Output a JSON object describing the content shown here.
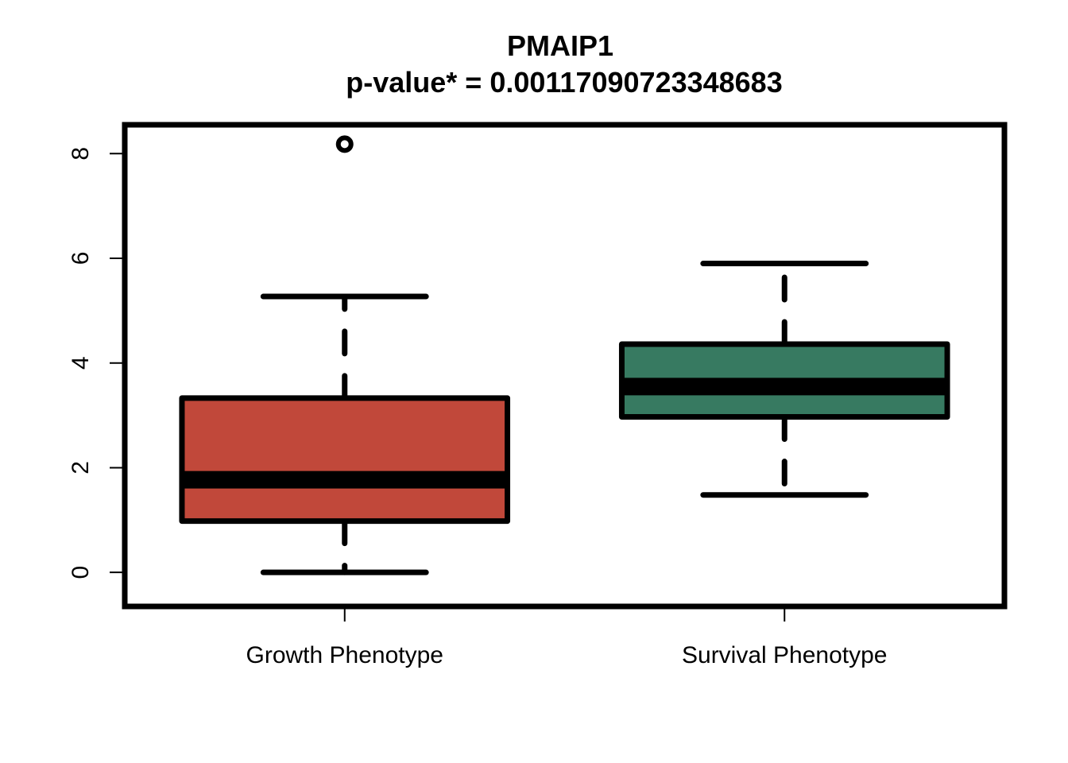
{
  "chart_data": {
    "type": "box",
    "title": "PMAIP1",
    "subtitle": "p-value* = 0.00117090723348683",
    "xlabel": "",
    "ylabel": "",
    "ylim": [
      -0.65,
      8.55
    ],
    "yticks": [
      0,
      2,
      4,
      6,
      8
    ],
    "ytick_labels": [
      "0",
      "2",
      "4",
      "6",
      "8"
    ],
    "grid": false,
    "legend": "none",
    "categories": [
      "Growth Phenotype",
      "Survival Phenotype"
    ],
    "boxes": [
      {
        "label": "Growth Phenotype",
        "color": "#c1483a",
        "whisker_low": 0.0,
        "q1": 0.98,
        "median": 1.77,
        "q3": 3.33,
        "whisker_high": 5.27,
        "outliers": [
          8.18
        ]
      },
      {
        "label": "Survival Phenotype",
        "color": "#377a61",
        "whisker_low": 1.48,
        "q1": 2.97,
        "median": 3.55,
        "q3": 4.36,
        "whisker_high": 5.9,
        "outliers": []
      }
    ]
  }
}
